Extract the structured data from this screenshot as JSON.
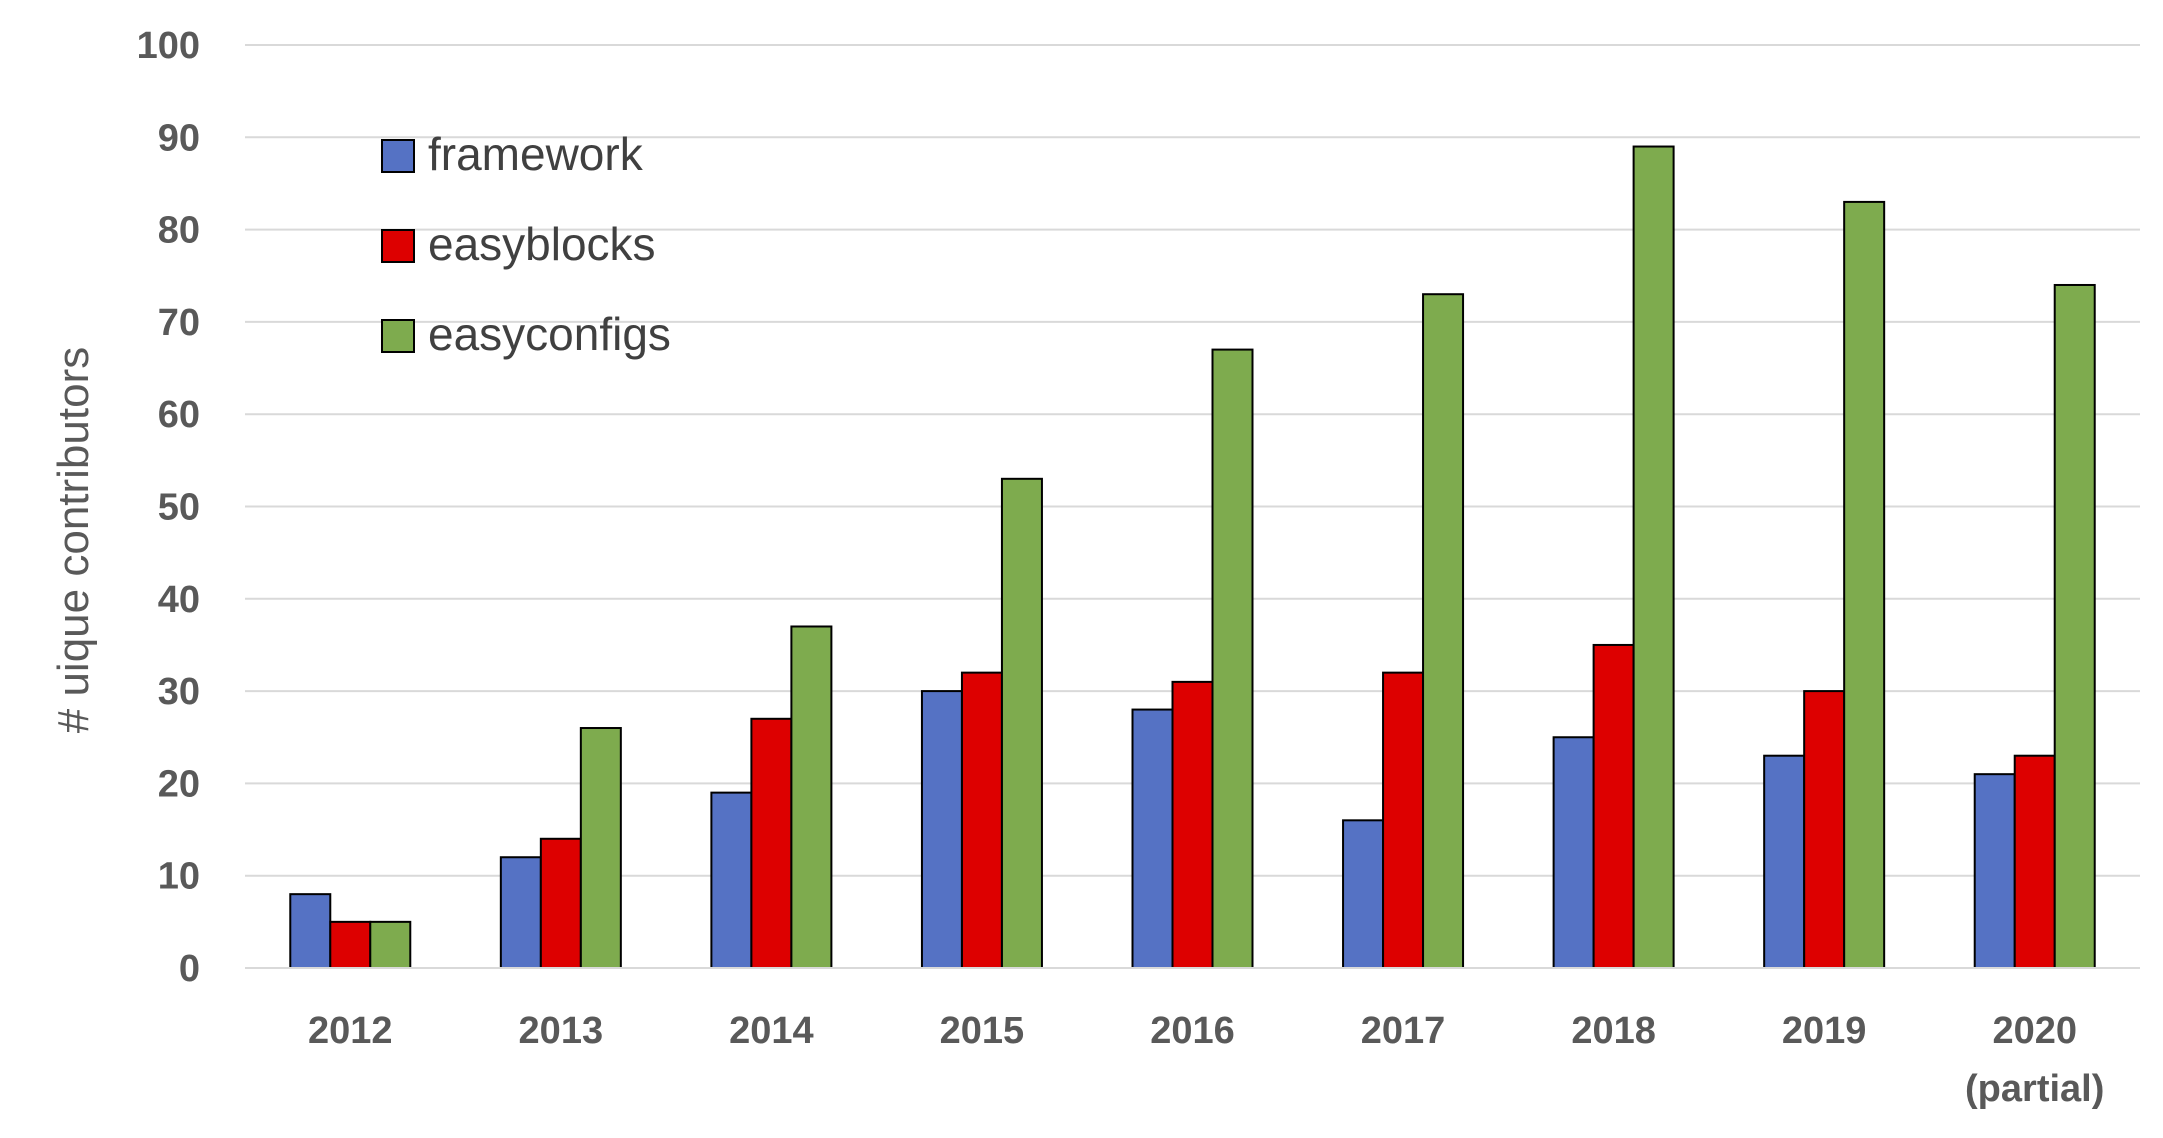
{
  "chart_data": {
    "type": "bar",
    "title": "",
    "xlabel": "",
    "ylabel": "# uique contributors",
    "ylim": [
      0,
      100
    ],
    "yticks": [
      0,
      10,
      20,
      30,
      40,
      50,
      60,
      70,
      80,
      90,
      100
    ],
    "grid": true,
    "legend_position": "top-left",
    "categories": [
      [
        "2012"
      ],
      [
        "2013"
      ],
      [
        "2014"
      ],
      [
        "2015"
      ],
      [
        "2016"
      ],
      [
        "2017"
      ],
      [
        "2018"
      ],
      [
        "2019"
      ],
      [
        "2020",
        "(partial)"
      ]
    ],
    "series": [
      {
        "name": "framework",
        "color": "#5572C4",
        "values": [
          8,
          12,
          19,
          30,
          28,
          16,
          25,
          23,
          21
        ]
      },
      {
        "name": "easyblocks",
        "color": "#DD0000",
        "values": [
          5,
          14,
          27,
          32,
          31,
          32,
          35,
          30,
          23
        ]
      },
      {
        "name": "easyconfigs",
        "color": "#7EAB4E",
        "values": [
          5,
          26,
          37,
          53,
          67,
          73,
          89,
          83,
          74
        ]
      }
    ],
    "colors": {
      "gridline": "#D9D9D9",
      "tick_text": "#595959",
      "legend_text": "#404040",
      "bar_stroke": "#000000"
    }
  }
}
